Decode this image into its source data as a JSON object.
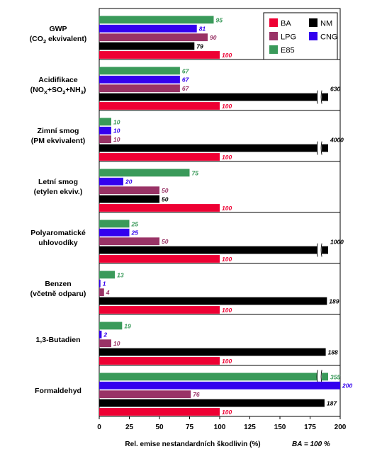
{
  "chart_data": {
    "type": "bar",
    "orientation": "horizontal",
    "xlabel": "Rel. emise nestandardních škodlivin (%)",
    "note": "BA = 100 %",
    "xlim": [
      0,
      200
    ],
    "xticks": [
      0,
      25,
      50,
      75,
      100,
      125,
      150,
      175,
      200
    ],
    "grid": false,
    "legend_position": "top-right",
    "series": [
      {
        "key": "E85",
        "name": "E85",
        "color": "#3a9a5a"
      },
      {
        "key": "CNG",
        "name": "CNG",
        "color": "#3300ee"
      },
      {
        "key": "LPG",
        "name": "LPG",
        "color": "#993366"
      },
      {
        "key": "NM",
        "name": "NM",
        "color": "#000000"
      },
      {
        "key": "BA",
        "name": "BA",
        "color": "#ee0033"
      }
    ],
    "legend_order": [
      "BA",
      "NM",
      "LPG",
      "CNG",
      "E85"
    ],
    "categories": [
      {
        "lines": [
          "GWP"
        ],
        "sub": {
          "before": "(CO",
          "sub": "2",
          "after": " ekvivalent)"
        },
        "values": {
          "E85": 95,
          "CNG": 81,
          "LPG": 90,
          "NM": 79,
          "BA": 100
        }
      },
      {
        "lines": [
          "Acidifikace"
        ],
        "sub": {
          "before": "(NO",
          "sub": "X",
          "after": "+SO",
          "sub2": "2",
          "after2": "+NH",
          "sub3": "3",
          "after3": ")"
        },
        "values": {
          "E85": 67,
          "CNG": 67,
          "LPG": 67,
          "NM": 630,
          "BA": 100
        }
      },
      {
        "lines": [
          "Zimní smog",
          "(PM ekvivalent)"
        ],
        "values": {
          "E85": 10,
          "CNG": 10,
          "LPG": 10,
          "NM": 4000,
          "BA": 100
        }
      },
      {
        "lines": [
          "Letní smog",
          "(etylen ekviv.)"
        ],
        "values": {
          "E85": 75,
          "CNG": 20,
          "LPG": 50,
          "NM": 50,
          "BA": 100
        }
      },
      {
        "lines": [
          "Polyaromatické",
          "uhlovodíky"
        ],
        "values": {
          "E85": 25,
          "CNG": 25,
          "LPG": 50,
          "NM": 1000,
          "BA": 100
        }
      },
      {
        "lines": [
          "Benzen",
          "(včetně odparu)"
        ],
        "values": {
          "E85": 13,
          "CNG": 1,
          "LPG": 4,
          "NM": 189,
          "BA": 100
        }
      },
      {
        "lines": [
          "1,3-Butadien"
        ],
        "values": {
          "E85": 19,
          "CNG": 2,
          "LPG": 10,
          "NM": 188,
          "BA": 100
        }
      },
      {
        "lines": [
          "Formaldehyd"
        ],
        "values": {
          "E85": 355,
          "CNG": 200,
          "LPG": 76,
          "NM": 187,
          "BA": 100
        }
      }
    ]
  }
}
